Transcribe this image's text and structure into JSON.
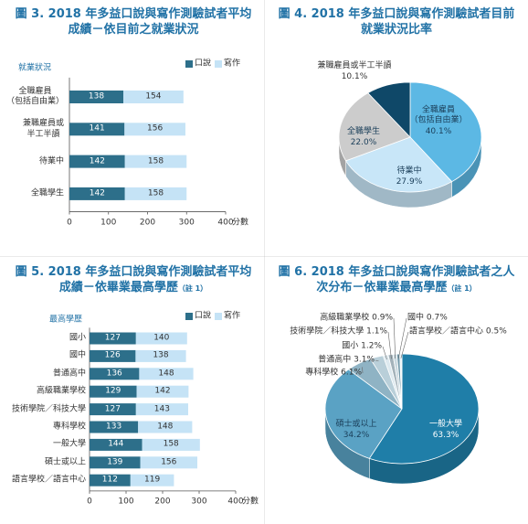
{
  "chart_data": [
    {
      "type": "bar",
      "orientation": "horizontal",
      "stacked": true,
      "title": "圖 3. 2018 年多益口說與寫作測驗試者平均\n成績－依目前之就業狀況",
      "y_label": "就業狀況",
      "x_label": "分數",
      "categories": [
        "全職雇員\n（包括自由業）",
        "兼職雇員或\n半工半讀",
        "待業中",
        "全職學生"
      ],
      "series": [
        {
          "name": "口說",
          "color": "#2d6f8a",
          "values": [
            138,
            141,
            142,
            142
          ]
        },
        {
          "name": "寫作",
          "color": "#c5e3f6",
          "values": [
            154,
            156,
            158,
            158
          ]
        }
      ],
      "xlim": [
        0,
        400
      ],
      "xticks": [
        0,
        100,
        200,
        300,
        400
      ]
    },
    {
      "type": "pie",
      "title": "圖 4. 2018 年多益口說與寫作測驗試者目前\n就業狀況比率",
      "categories": [
        "全職雇員\n（包括自由業）",
        "待業中",
        "全職學生",
        "兼職雇員或半工半讀"
      ],
      "values": [
        40.1,
        27.9,
        22.0,
        10.1
      ],
      "value_labels": [
        "40.1%",
        "27.9%",
        "22.0%",
        "10.1%"
      ],
      "colors": [
        "#5cb8e4",
        "#c8e6f8",
        "#cccccc",
        "#0f4868"
      ]
    },
    {
      "type": "bar",
      "orientation": "horizontal",
      "stacked": true,
      "title": "圖 5. 2018 年多益口說與寫作測驗試者平均\n成績－依畢業最高學歷",
      "title_note": "（註 1）",
      "y_label": "最高學歷",
      "x_label": "分數",
      "categories": [
        "國小",
        "國中",
        "普通高中",
        "高級職業學校",
        "技術學院／科技大學",
        "專科學校",
        "一般大學",
        "碩士或以上",
        "語言學校／語言中心"
      ],
      "series": [
        {
          "name": "口說",
          "color": "#2d6f8a",
          "values": [
            127,
            126,
            136,
            129,
            127,
            133,
            144,
            139,
            112
          ]
        },
        {
          "name": "寫作",
          "color": "#c5e3f6",
          "values": [
            140,
            138,
            148,
            142,
            143,
            148,
            158,
            156,
            119
          ]
        }
      ],
      "xlim": [
        0,
        400
      ],
      "xticks": [
        0,
        100,
        200,
        300,
        400
      ]
    },
    {
      "type": "pie",
      "title": "圖 6. 2018 年多益口說與寫作測驗試者之人\n次分布－依畢業最高學歷",
      "title_note": "（註 1）",
      "categories": [
        "一般大學",
        "碩士或以上",
        "專科學校",
        "普通高中",
        "國小",
        "技術學院／科技大學",
        "高級職業學校",
        "國中",
        "語言學校／語言中心"
      ],
      "values": [
        63.3,
        34.2,
        6.1,
        3.1,
        1.2,
        1.1,
        0.9,
        0.7,
        0.5
      ],
      "value_labels": [
        "63.3%",
        "34.2%",
        "6.1%",
        "3.1%",
        "1.2%",
        "1.1%",
        "0.9%",
        "0.7%",
        "0.5%"
      ],
      "colors": [
        "#1f7ea8",
        "#5aa2c4",
        "#8fb3c4",
        "#b9cfd9",
        "#dde9ef",
        "#a3b2ba",
        "#c9d8df",
        "#6f97a8",
        "#e8f2f7"
      ]
    }
  ]
}
